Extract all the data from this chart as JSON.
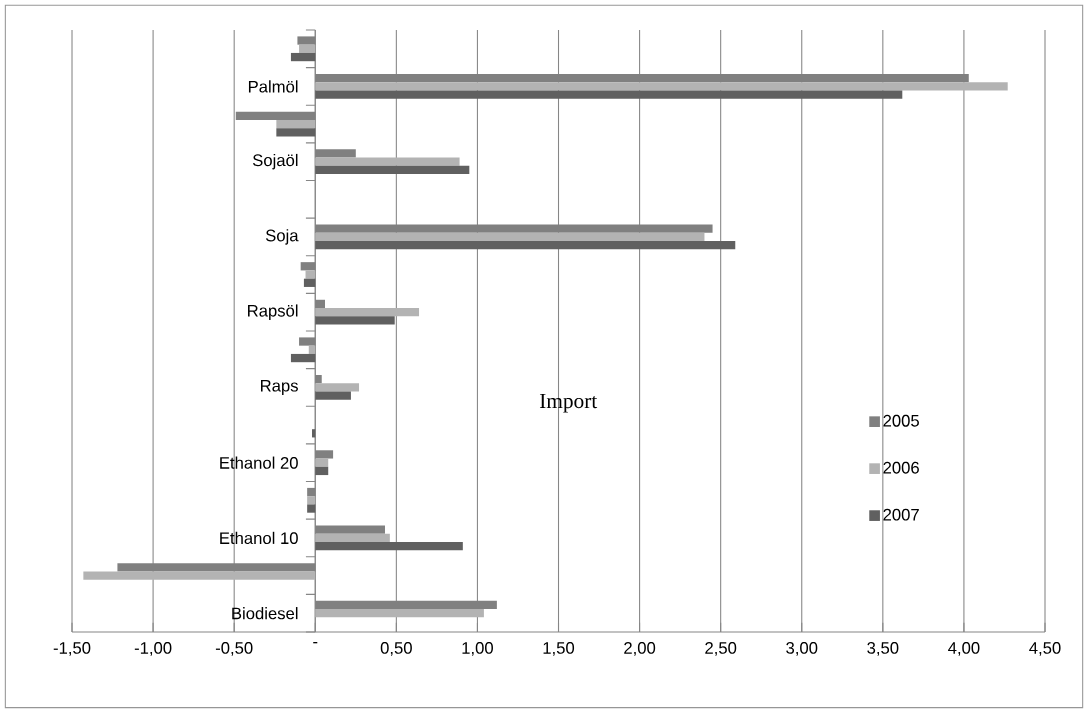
{
  "chart_data": {
    "type": "bar",
    "orientation": "horizontal",
    "annotations": [
      "Import"
    ],
    "categories": [
      null,
      "Palmöl",
      null,
      "Sojaöl",
      null,
      "Soja",
      null,
      "Rapsöl",
      null,
      "Raps",
      null,
      "Ethanol 20",
      null,
      "Ethanol 10",
      null,
      "Biodiesel"
    ],
    "series": [
      {
        "name": "2005",
        "color": "#808080",
        "values": [
          -0.11,
          4.03,
          -0.49,
          0.25,
          0,
          2.45,
          -0.09,
          0.06,
          -0.1,
          0.04,
          0,
          0.11,
          -0.05,
          0.43,
          -1.22,
          1.12
        ]
      },
      {
        "name": "2006",
        "color": "#b3b3b3",
        "values": [
          -0.1,
          4.27,
          -0.24,
          0.89,
          0,
          2.4,
          -0.06,
          0.64,
          -0.04,
          0.27,
          0,
          0.08,
          -0.05,
          0.46,
          -1.43,
          1.04
        ]
      },
      {
        "name": "2007",
        "color": "#606060",
        "values": [
          -0.15,
          3.62,
          -0.24,
          0.95,
          0,
          2.59,
          -0.07,
          0.49,
          -0.15,
          0.22,
          -0.02,
          0.08,
          -0.05,
          0.91,
          0,
          0
        ]
      }
    ],
    "xlim": [
      -1.5,
      4.5
    ],
    "xticks": [
      {
        "value": -1.5,
        "label": "-1,50"
      },
      {
        "value": -1,
        "label": "-1,00"
      },
      {
        "value": -0.5,
        "label": "-0,50"
      },
      {
        "value": 0,
        "label": "-"
      },
      {
        "value": 0.5,
        "label": "0,50"
      },
      {
        "value": 1,
        "label": "1,00"
      },
      {
        "value": 1.5,
        "label": "1,50"
      },
      {
        "value": 2,
        "label": "2,00"
      },
      {
        "value": 2.5,
        "label": "2,50"
      },
      {
        "value": 3,
        "label": "3,00"
      },
      {
        "value": 3.5,
        "label": "3,50"
      },
      {
        "value": 4,
        "label": "4,00"
      },
      {
        "value": 4.5,
        "label": "4,50"
      }
    ],
    "grid": "x",
    "legend": "right"
  }
}
